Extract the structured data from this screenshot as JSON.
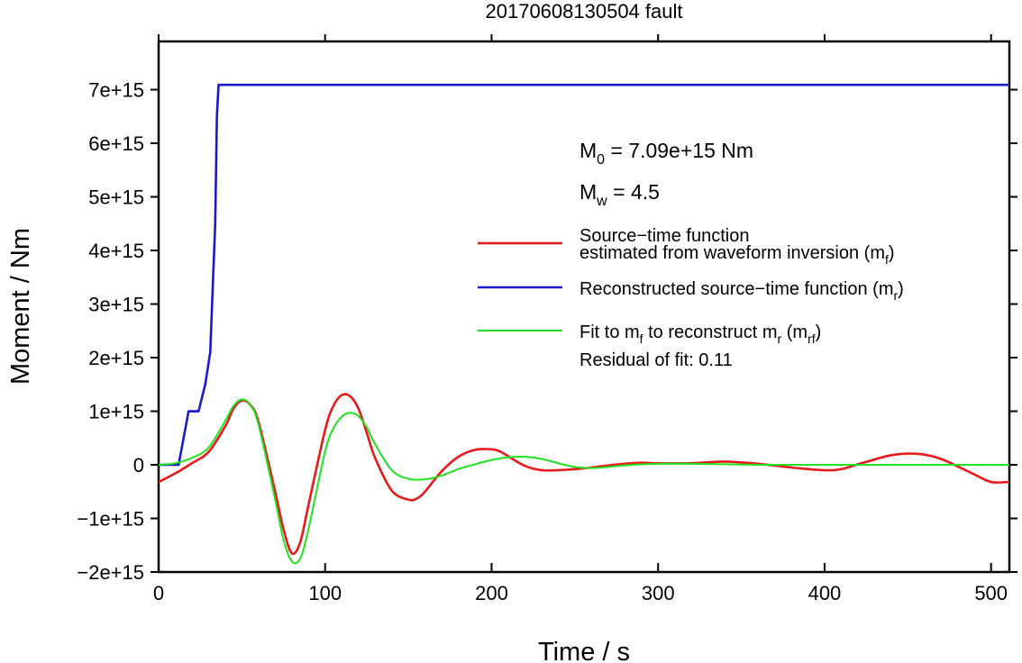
{
  "chart_data": {
    "type": "line",
    "title": "20170608130504 fault",
    "xlabel": "Time / s",
    "ylabel": "Moment / Nm",
    "xlim": [
      0,
      511
    ],
    "ylim": [
      -2000000000000000.0,
      7900000000000000.0
    ],
    "xticks": [
      0,
      100,
      200,
      300,
      400,
      500
    ],
    "xtick_labels": [
      "0",
      "100",
      "200",
      "300",
      "400",
      "500"
    ],
    "yticks": [
      -2000000000000000.0,
      -1000000000000000.0,
      0,
      1000000000000000.0,
      2000000000000000.0,
      3000000000000000.0,
      4000000000000000.0,
      5000000000000000.0,
      6000000000000000.0,
      7000000000000000.0
    ],
    "ytick_labels": [
      "−2e+15",
      "−1e+15",
      "0",
      "1e+15",
      "2e+15",
      "3e+15",
      "4e+15",
      "5e+15",
      "6e+15",
      "7e+15"
    ],
    "grid": false,
    "annotations": {
      "m0_label": "M",
      "m0_sub": "0",
      "m0_value": " = 7.09e+15 Nm",
      "mw_label": "M",
      "mw_sub": "w",
      "mw_value": " = 4.5",
      "residual": "Residual of fit: 0.11"
    },
    "legend": {
      "placement": "right",
      "entries": [
        {
          "line1": "Source−time function",
          "line2": "estimated from waveform inversion (m",
          "sub": "f",
          "close": ")",
          "color": "#e8191a"
        },
        {
          "line1": "Reconstructed source−time function (m",
          "sub": "r",
          "close": ")",
          "color": "#1a1ac8"
        },
        {
          "line1": "Fit to m",
          "sub1": "f",
          "mid": " to reconstruct m",
          "sub2": "r",
          "mid2": " (m",
          "sub3": "rf",
          "close": ")",
          "color": "#22e022"
        }
      ]
    },
    "series": [
      {
        "name": "Source−time function estimated from waveform inversion (mf)",
        "color": "#e8191a",
        "x": [
          0,
          10,
          20,
          30,
          40,
          45,
          50,
          55,
          60,
          70,
          75,
          80,
          85,
          90,
          100,
          105,
          110,
          115,
          120,
          125,
          130,
          140,
          150,
          155,
          160,
          170,
          180,
          190,
          200,
          205,
          210,
          220,
          230,
          240,
          250,
          260,
          270,
          280,
          290,
          300,
          320,
          340,
          360,
          380,
          400,
          410,
          420,
          430,
          440,
          450,
          460,
          470,
          480,
          490,
          500,
          511
        ],
        "y": [
          -320000000000000.0,
          -160000000000000.0,
          30000000000000.0,
          240000000000000.0,
          720000000000000.0,
          1050000000000000.0,
          1200000000000000.0,
          1120000000000000.0,
          800000000000000.0,
          -500000000000000.0,
          -1200000000000000.0,
          -1650000000000000.0,
          -1450000000000000.0,
          -750000000000000.0,
          650000000000000.0,
          1100000000000000.0,
          1300000000000000.0,
          1280000000000000.0,
          1050000000000000.0,
          600000000000000.0,
          130000000000000.0,
          -480000000000000.0,
          -650000000000000.0,
          -630000000000000.0,
          -500000000000000.0,
          -120000000000000.0,
          150000000000000.0,
          280000000000000.0,
          290000000000000.0,
          250000000000000.0,
          160000000000000.0,
          -20000000000000.0,
          -100000000000000.0,
          -100000000000000.0,
          -80000000000000.0,
          -50000000000000.0,
          -10000000000000.0,
          20000000000000.0,
          40000000000000.0,
          30000000000000.0,
          30000000000000.0,
          60000000000000.0,
          20000000000000.0,
          -50000000000000.0,
          -100000000000000.0,
          -80000000000000.0,
          10000000000000.0,
          100000000000000.0,
          180000000000000.0,
          210000000000000.0,
          190000000000000.0,
          110000000000000.0,
          -30000000000000.0,
          -180000000000000.0,
          -320000000000000.0,
          -320000000000000.0
        ]
      },
      {
        "name": "Reconstructed source−time function (mr)",
        "color": "#1a1ac8",
        "x": [
          0,
          12,
          18,
          24,
          28,
          31,
          34,
          35,
          36,
          511
        ],
        "y": [
          0,
          0,
          1000000000000000.0,
          1000000000000000.0,
          1500000000000000.0,
          2100000000000000.0,
          4500000000000000.0,
          6500000000000000.0,
          7090000000000000.0,
          7090000000000000.0
        ]
      },
      {
        "name": "Fit to mf to reconstruct mr (mrf)",
        "color": "#22e022",
        "x": [
          0,
          10,
          20,
          30,
          40,
          45,
          50,
          55,
          60,
          70,
          75,
          80,
          85,
          90,
          100,
          105,
          110,
          115,
          120,
          125,
          130,
          140,
          150,
          160,
          170,
          180,
          190,
          200,
          210,
          220,
          230,
          240,
          250,
          260,
          270,
          280,
          290,
          300,
          320,
          340,
          360,
          380,
          400,
          420,
          440,
          460,
          480,
          511
        ],
        "y": [
          0,
          30000000000000.0,
          130000000000000.0,
          320000000000000.0,
          820000000000000.0,
          1100000000000000.0,
          1220000000000000.0,
          1120000000000000.0,
          750000000000000.0,
          -650000000000000.0,
          -1400000000000000.0,
          -1800000000000000.0,
          -1750000000000000.0,
          -1200000000000000.0,
          250000000000000.0,
          680000000000000.0,
          900000000000000.0,
          970000000000000.0,
          910000000000000.0,
          700000000000000.0,
          390000000000000.0,
          -100000000000000.0,
          -260000000000000.0,
          -270000000000000.0,
          -200000000000000.0,
          -80000000000000.0,
          10000000000000.0,
          90000000000000.0,
          140000000000000.0,
          150000000000000.0,
          110000000000000.0,
          30000000000000.0,
          -40000000000000.0,
          -60000000000000.0,
          -40000000000000.0,
          -10000000000000.0,
          10000000000000.0,
          20000000000000.0,
          20000000000000.0,
          10000000000000.0,
          0,
          0,
          0,
          0,
          0,
          0,
          0,
          0
        ]
      }
    ]
  }
}
